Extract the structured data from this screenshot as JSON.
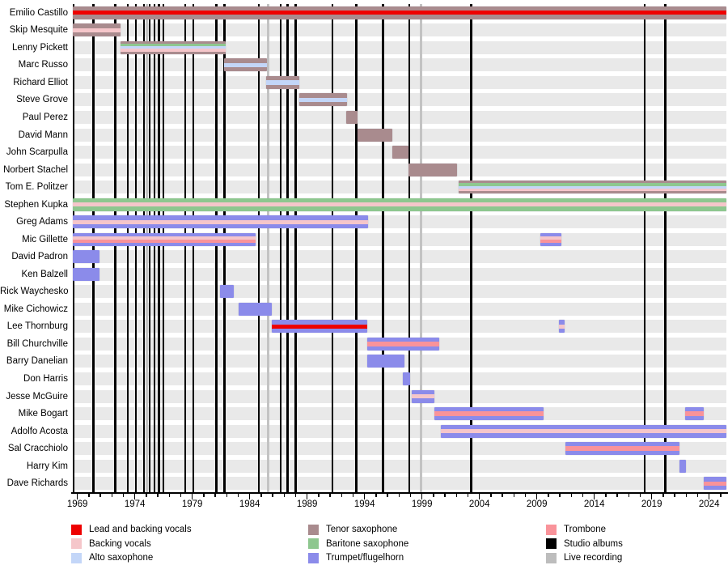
{
  "chart_data": {
    "type": "gantt",
    "title": "",
    "x_axis": {
      "range": [
        1968.6,
        2025.5
      ],
      "tick_years": [
        1969,
        1974,
        1979,
        1984,
        1989,
        1994,
        1999,
        2004,
        2009,
        2014,
        2019,
        2024
      ],
      "minor_tick_step": 1
    },
    "colors": {
      "lead": "#ee0000",
      "backing": "#f5c6ca",
      "alto": "#c3d6f8",
      "tenor": "#a98b8e",
      "baritone": "#8ec78f",
      "trumpet": "#8b8bea",
      "trombone": "#f9939a",
      "studio_album_line": "#000000",
      "live_recording_line": "#c3c3c3",
      "row_band": "#e9e9e9"
    },
    "members": [
      {
        "name": "Emilio Castillo",
        "segments": [
          {
            "start": 1968.6,
            "end": 2025.5,
            "stripes": [
              "tenor",
              "lead",
              "tenor"
            ]
          }
        ]
      },
      {
        "name": "Skip Mesquite",
        "segments": [
          {
            "start": 1968.6,
            "end": 1972.75,
            "stripes": [
              "tenor",
              "backing",
              "tenor"
            ]
          }
        ]
      },
      {
        "name": "Lenny Pickett",
        "segments": [
          {
            "start": 1972.75,
            "end": 1981.9,
            "stripes": [
              "tenor",
              "baritone",
              "alto",
              "backing",
              "tenor"
            ]
          }
        ]
      },
      {
        "name": "Marc Russo",
        "segments": [
          {
            "start": 1981.8,
            "end": 1985.5,
            "stripes": [
              "tenor",
              "alto",
              "tenor"
            ]
          }
        ]
      },
      {
        "name": "Richard Elliot",
        "segments": [
          {
            "start": 1985.45,
            "end": 1988.35,
            "stripes": [
              "tenor",
              "alto",
              "tenor"
            ]
          }
        ]
      },
      {
        "name": "Steve Grove",
        "segments": [
          {
            "start": 1988.3,
            "end": 1992.5,
            "stripes": [
              "tenor",
              "alto",
              "tenor"
            ]
          }
        ]
      },
      {
        "name": "Paul Perez",
        "segments": [
          {
            "start": 1992.4,
            "end": 1993.4,
            "stripes": [
              "tenor"
            ]
          }
        ]
      },
      {
        "name": "David Mann",
        "segments": [
          {
            "start": 1993.4,
            "end": 1996.4,
            "stripes": [
              "tenor"
            ]
          }
        ]
      },
      {
        "name": "John Scarpulla",
        "segments": [
          {
            "start": 1996.4,
            "end": 1997.85,
            "stripes": [
              "tenor"
            ]
          }
        ]
      },
      {
        "name": "Norbert Stachel",
        "segments": [
          {
            "start": 1997.85,
            "end": 2002.05,
            "stripes": [
              "tenor"
            ]
          }
        ]
      },
      {
        "name": "Tom E. Politzer",
        "segments": [
          {
            "start": 2002.2,
            "end": 2025.5,
            "stripes": [
              "tenor",
              "baritone",
              "alto",
              "backing",
              "tenor"
            ]
          }
        ]
      },
      {
        "name": "Stephen Kupka",
        "segments": [
          {
            "start": 1968.6,
            "end": 2025.5,
            "stripes": [
              "baritone",
              "backing",
              "baritone"
            ]
          }
        ]
      },
      {
        "name": "Greg Adams",
        "segments": [
          {
            "start": 1968.6,
            "end": 1994.3,
            "stripes": [
              "trumpet",
              "backing",
              "trumpet"
            ]
          }
        ]
      },
      {
        "name": "Mic Gillette",
        "segments": [
          {
            "start": 1968.6,
            "end": 1984.5,
            "stripes": [
              "trumpet",
              "backing",
              "trombone",
              "trumpet"
            ]
          },
          {
            "start": 2009.3,
            "end": 2011.1,
            "stripes": [
              "trumpet",
              "backing",
              "trombone",
              "trumpet"
            ]
          }
        ]
      },
      {
        "name": "David Padron",
        "segments": [
          {
            "start": 1968.6,
            "end": 1970.9,
            "stripes": [
              "trumpet"
            ]
          }
        ]
      },
      {
        "name": "Ken Balzell",
        "segments": [
          {
            "start": 1968.6,
            "end": 1970.9,
            "stripes": [
              "trumpet"
            ]
          }
        ]
      },
      {
        "name": "Rick Waychesko",
        "segments": [
          {
            "start": 1981.4,
            "end": 1982.6,
            "stripes": [
              "trumpet"
            ]
          }
        ]
      },
      {
        "name": "Mike Cichowicz",
        "segments": [
          {
            "start": 1983.05,
            "end": 1985.9,
            "stripes": [
              "trumpet"
            ]
          }
        ]
      },
      {
        "name": "Lee Thornburg",
        "segments": [
          {
            "start": 1985.9,
            "end": 1994.2,
            "stripes": [
              "trumpet",
              "lead",
              "trumpet"
            ]
          },
          {
            "start": 2010.9,
            "end": 2011.4,
            "stripes": [
              "trumpet",
              "backing",
              "trumpet"
            ]
          }
        ]
      },
      {
        "name": "Bill Churchville",
        "segments": [
          {
            "start": 1994.25,
            "end": 2000.5,
            "stripes": [
              "trumpet",
              "trombone",
              "trumpet"
            ]
          }
        ]
      },
      {
        "name": "Barry Danelian",
        "segments": [
          {
            "start": 1994.25,
            "end": 1997.5,
            "stripes": [
              "trumpet"
            ]
          }
        ]
      },
      {
        "name": "Don Harris",
        "segments": [
          {
            "start": 1997.35,
            "end": 1998.0,
            "stripes": [
              "trumpet"
            ]
          }
        ]
      },
      {
        "name": "Jesse McGuire",
        "segments": [
          {
            "start": 1998.1,
            "end": 2000.1,
            "stripes": [
              "trumpet",
              "backing",
              "trumpet"
            ]
          }
        ]
      },
      {
        "name": "Mike Bogart",
        "segments": [
          {
            "start": 2000.1,
            "end": 2009.6,
            "stripes": [
              "trumpet",
              "trombone",
              "trumpet"
            ]
          },
          {
            "start": 2021.9,
            "end": 2023.5,
            "stripes": [
              "trumpet",
              "trombone",
              "trumpet"
            ]
          }
        ]
      },
      {
        "name": "Adolfo Acosta",
        "segments": [
          {
            "start": 2000.65,
            "end": 2025.5,
            "stripes": [
              "trumpet",
              "backing",
              "trumpet"
            ]
          }
        ]
      },
      {
        "name": "Sal Cracchiolo",
        "segments": [
          {
            "start": 2011.5,
            "end": 2021.4,
            "stripes": [
              "trumpet",
              "trombone",
              "trumpet"
            ]
          }
        ]
      },
      {
        "name": "Harry Kim",
        "segments": [
          {
            "start": 2021.45,
            "end": 2022.0,
            "stripes": [
              "trumpet"
            ]
          }
        ]
      },
      {
        "name": "Dave Richards",
        "segments": [
          {
            "start": 2023.5,
            "end": 2025.5,
            "stripes": [
              "trumpet",
              "trombone",
              "trumpet"
            ]
          }
        ]
      }
    ],
    "studio_albums": [
      1970.4,
      1972.3,
      1973.4,
      1974.1,
      1974.8,
      1975.3,
      1975.7,
      1976.1,
      1976.5,
      1978.4,
      1979.1,
      1981.1,
      1981.8,
      1984.8,
      1986.7,
      1987.3,
      1988.0,
      1991.2,
      1993.3,
      1995.6,
      1997.9,
      2003.3,
      2018.4,
      2020.2
    ],
    "live_recordings": [
      1975.05,
      1985.6,
      1998.9
    ],
    "legend": {
      "columns": [
        [
          {
            "label": "Lead and backing vocals",
            "color": "#ee0000"
          },
          {
            "label": "Backing vocals",
            "color": "#f5c6ca"
          },
          {
            "label": "Alto saxophone",
            "color": "#c3d6f8"
          }
        ],
        [
          {
            "label": "Tenor saxophone",
            "color": "#a98b8e"
          },
          {
            "label": "Baritone saxophone",
            "color": "#8ec78f"
          },
          {
            "label": "Trumpet/flugelhorn",
            "color": "#8b8bea"
          }
        ],
        [
          {
            "label": "Trombone",
            "color": "#f9939a"
          },
          {
            "label": "Studio albums",
            "color": "#000000"
          },
          {
            "label": "Live recording",
            "color": "#bdbdbd"
          }
        ]
      ],
      "position": "bottom"
    }
  }
}
